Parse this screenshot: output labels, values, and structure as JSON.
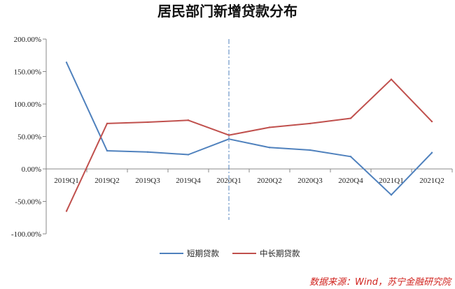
{
  "chart_data": {
    "type": "line",
    "title": "居民部门新增贷款分布",
    "categories": [
      "2019Q1",
      "2019Q2",
      "2019Q3",
      "2019Q4",
      "2020Q1",
      "2020Q2",
      "2020Q3",
      "2020Q4",
      "2021Q1",
      "2021Q2"
    ],
    "series": [
      {
        "name": "短期贷款",
        "color": "#4f81bd",
        "values": [
          164,
          28,
          26,
          22,
          46,
          33,
          29,
          19,
          -40,
          25
        ]
      },
      {
        "name": "中长期贷款",
        "color": "#c0504d",
        "values": [
          -65,
          70,
          72,
          75,
          52,
          64,
          70,
          78,
          138,
          73
        ]
      }
    ],
    "y_ticks": [
      "200.00%",
      "150.00%",
      "100.00%",
      "50.00%",
      "0.00%",
      "-50.00%",
      "-100.00%"
    ],
    "y_unit": "%",
    "ylim": [
      -100,
      200
    ],
    "y_tick_step": 50,
    "marker_line": {
      "category": "2020Q1",
      "style": "dash-dot",
      "color": "#4f81bd"
    },
    "legend_position": "bottom",
    "grid": false
  },
  "source_note": "数据来源：Wind，苏宁金融研究院"
}
